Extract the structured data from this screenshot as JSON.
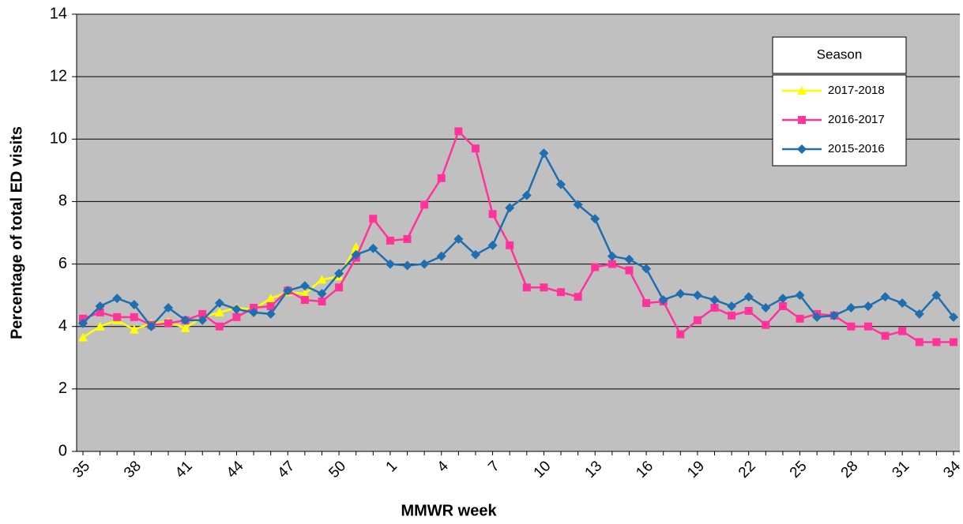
{
  "chart_data": {
    "type": "line",
    "x_label": "MMWR week",
    "y_label": "Percentage of total ED visits",
    "legend_title": "Season",
    "legend_position": "upper right",
    "grid": true,
    "background": "#c0c0c0",
    "categories": [
      "35",
      null,
      null,
      "38",
      null,
      null,
      "41",
      null,
      null,
      "44",
      null,
      null,
      "47",
      null,
      null,
      "50",
      null,
      null,
      "1",
      null,
      null,
      "4",
      null,
      null,
      "7",
      null,
      null,
      "10",
      null,
      null,
      "13",
      null,
      null,
      "16",
      null,
      null,
      "19",
      null,
      null,
      "22",
      null,
      null,
      "25",
      null,
      null,
      "28",
      null,
      null,
      "31",
      null,
      null,
      "34"
    ],
    "ylim": [
      0,
      14
    ],
    "yticks": [
      0,
      2,
      4,
      6,
      8,
      10,
      12,
      14
    ],
    "series": [
      {
        "name": "2017-2018",
        "color": "#ffff00",
        "marker": "triangle",
        "values": [
          3.65,
          4.0,
          4.2,
          3.9,
          4.1,
          4.15,
          3.95,
          4.3,
          4.45,
          4.6,
          4.55,
          4.9,
          5.1,
          5.05,
          5.5,
          5.6,
          6.55,
          null,
          null,
          null,
          null,
          null,
          null,
          null,
          null,
          null,
          null,
          null,
          null,
          null,
          null,
          null,
          null,
          null,
          null,
          null,
          null,
          null,
          null,
          null,
          null,
          null,
          null,
          null,
          null,
          null,
          null,
          null,
          null,
          null,
          null,
          null
        ]
      },
      {
        "name": "2016-2017",
        "color": "#ff3399",
        "marker": "square",
        "values": [
          4.25,
          4.45,
          4.3,
          4.3,
          4.05,
          4.1,
          4.2,
          4.4,
          4.0,
          4.3,
          4.6,
          4.65,
          5.15,
          4.85,
          4.8,
          5.25,
          6.2,
          7.45,
          6.75,
          6.8,
          7.9,
          8.75,
          10.25,
          9.7,
          7.6,
          6.6,
          5.25,
          5.25,
          5.1,
          4.95,
          5.9,
          6.0,
          5.8,
          4.75,
          4.8,
          3.75,
          4.2,
          4.6,
          4.35,
          4.5,
          4.05,
          4.65,
          4.25,
          4.4,
          4.35,
          4.0,
          4.0,
          3.7,
          3.85,
          3.5,
          3.5,
          3.5
        ]
      },
      {
        "name": "2015-2016",
        "color": "#1f6fb0",
        "marker": "diamond",
        "values": [
          4.1,
          4.65,
          4.9,
          4.7,
          4.0,
          4.6,
          4.2,
          4.2,
          4.75,
          4.55,
          4.45,
          4.4,
          5.15,
          5.3,
          5.05,
          5.7,
          6.3,
          6.5,
          6.0,
          5.95,
          6.0,
          6.25,
          6.8,
          6.3,
          6.6,
          7.8,
          8.2,
          9.55,
          8.55,
          7.9,
          7.45,
          6.25,
          6.15,
          5.85,
          4.85,
          5.05,
          5.0,
          4.85,
          4.65,
          4.95,
          4.6,
          4.9,
          5.0,
          4.3,
          4.35,
          4.6,
          4.65,
          4.95,
          4.75,
          4.4,
          5.0,
          4.3
        ]
      }
    ]
  }
}
